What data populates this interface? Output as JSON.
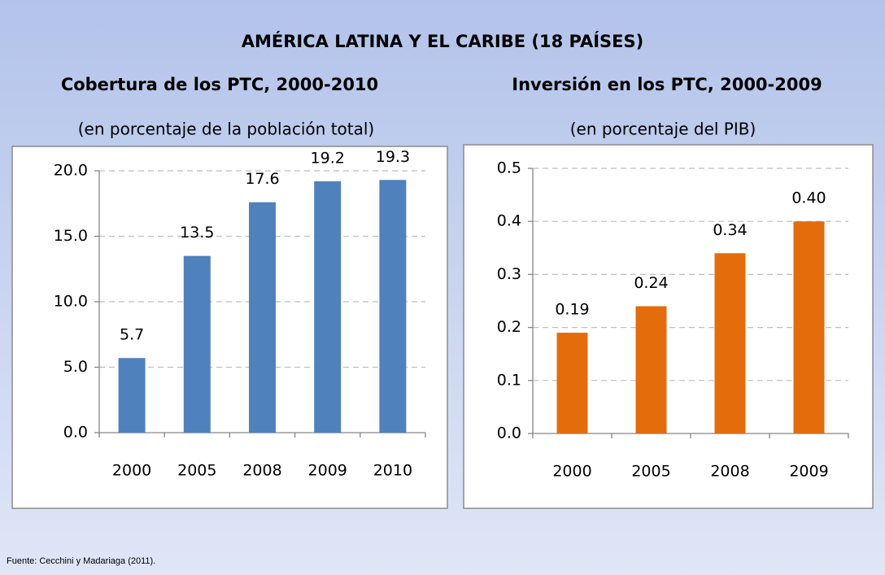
{
  "title": "AMÉRICA LATINA Y EL CARIBE (18 PAÍSES)",
  "source": "Fuente: Cecchini y Madariaga (2011).",
  "chart_data": [
    {
      "type": "bar",
      "title": "Cobertura de los PTC, 2000-2010",
      "subtitle": "(en porcentaje de la población total)",
      "categories": [
        "2000",
        "2005",
        "2008",
        "2009",
        "2010"
      ],
      "values": [
        5.7,
        13.5,
        17.6,
        19.2,
        19.3
      ],
      "color": "#4f81bd",
      "ylim": [
        0,
        20
      ],
      "yticks": [
        {
          "value": 0,
          "label": "0.0"
        },
        {
          "value": 5,
          "label": "5.0"
        },
        {
          "value": 10,
          "label": "10.0"
        },
        {
          "value": 15,
          "label": "15.0"
        },
        {
          "value": 20,
          "label": "20.0"
        }
      ],
      "grid": true
    },
    {
      "type": "bar",
      "title": "Inversión en los PTC, 2000-2009",
      "subtitle": "(en porcentaje del PIB)",
      "categories": [
        "2000",
        "2005",
        "2008",
        "2009"
      ],
      "values": [
        0.19,
        0.24,
        0.34,
        0.4
      ],
      "value_labels": [
        "0.19",
        "0.24",
        "0.34",
        "0.40"
      ],
      "color": "#e46c0a",
      "ylim": [
        0,
        0.5
      ],
      "yticks": [
        {
          "value": 0,
          "label": "0.0"
        },
        0.1,
        0.2,
        0.3,
        0.4,
        0.5
      ],
      "grid": true
    }
  ]
}
